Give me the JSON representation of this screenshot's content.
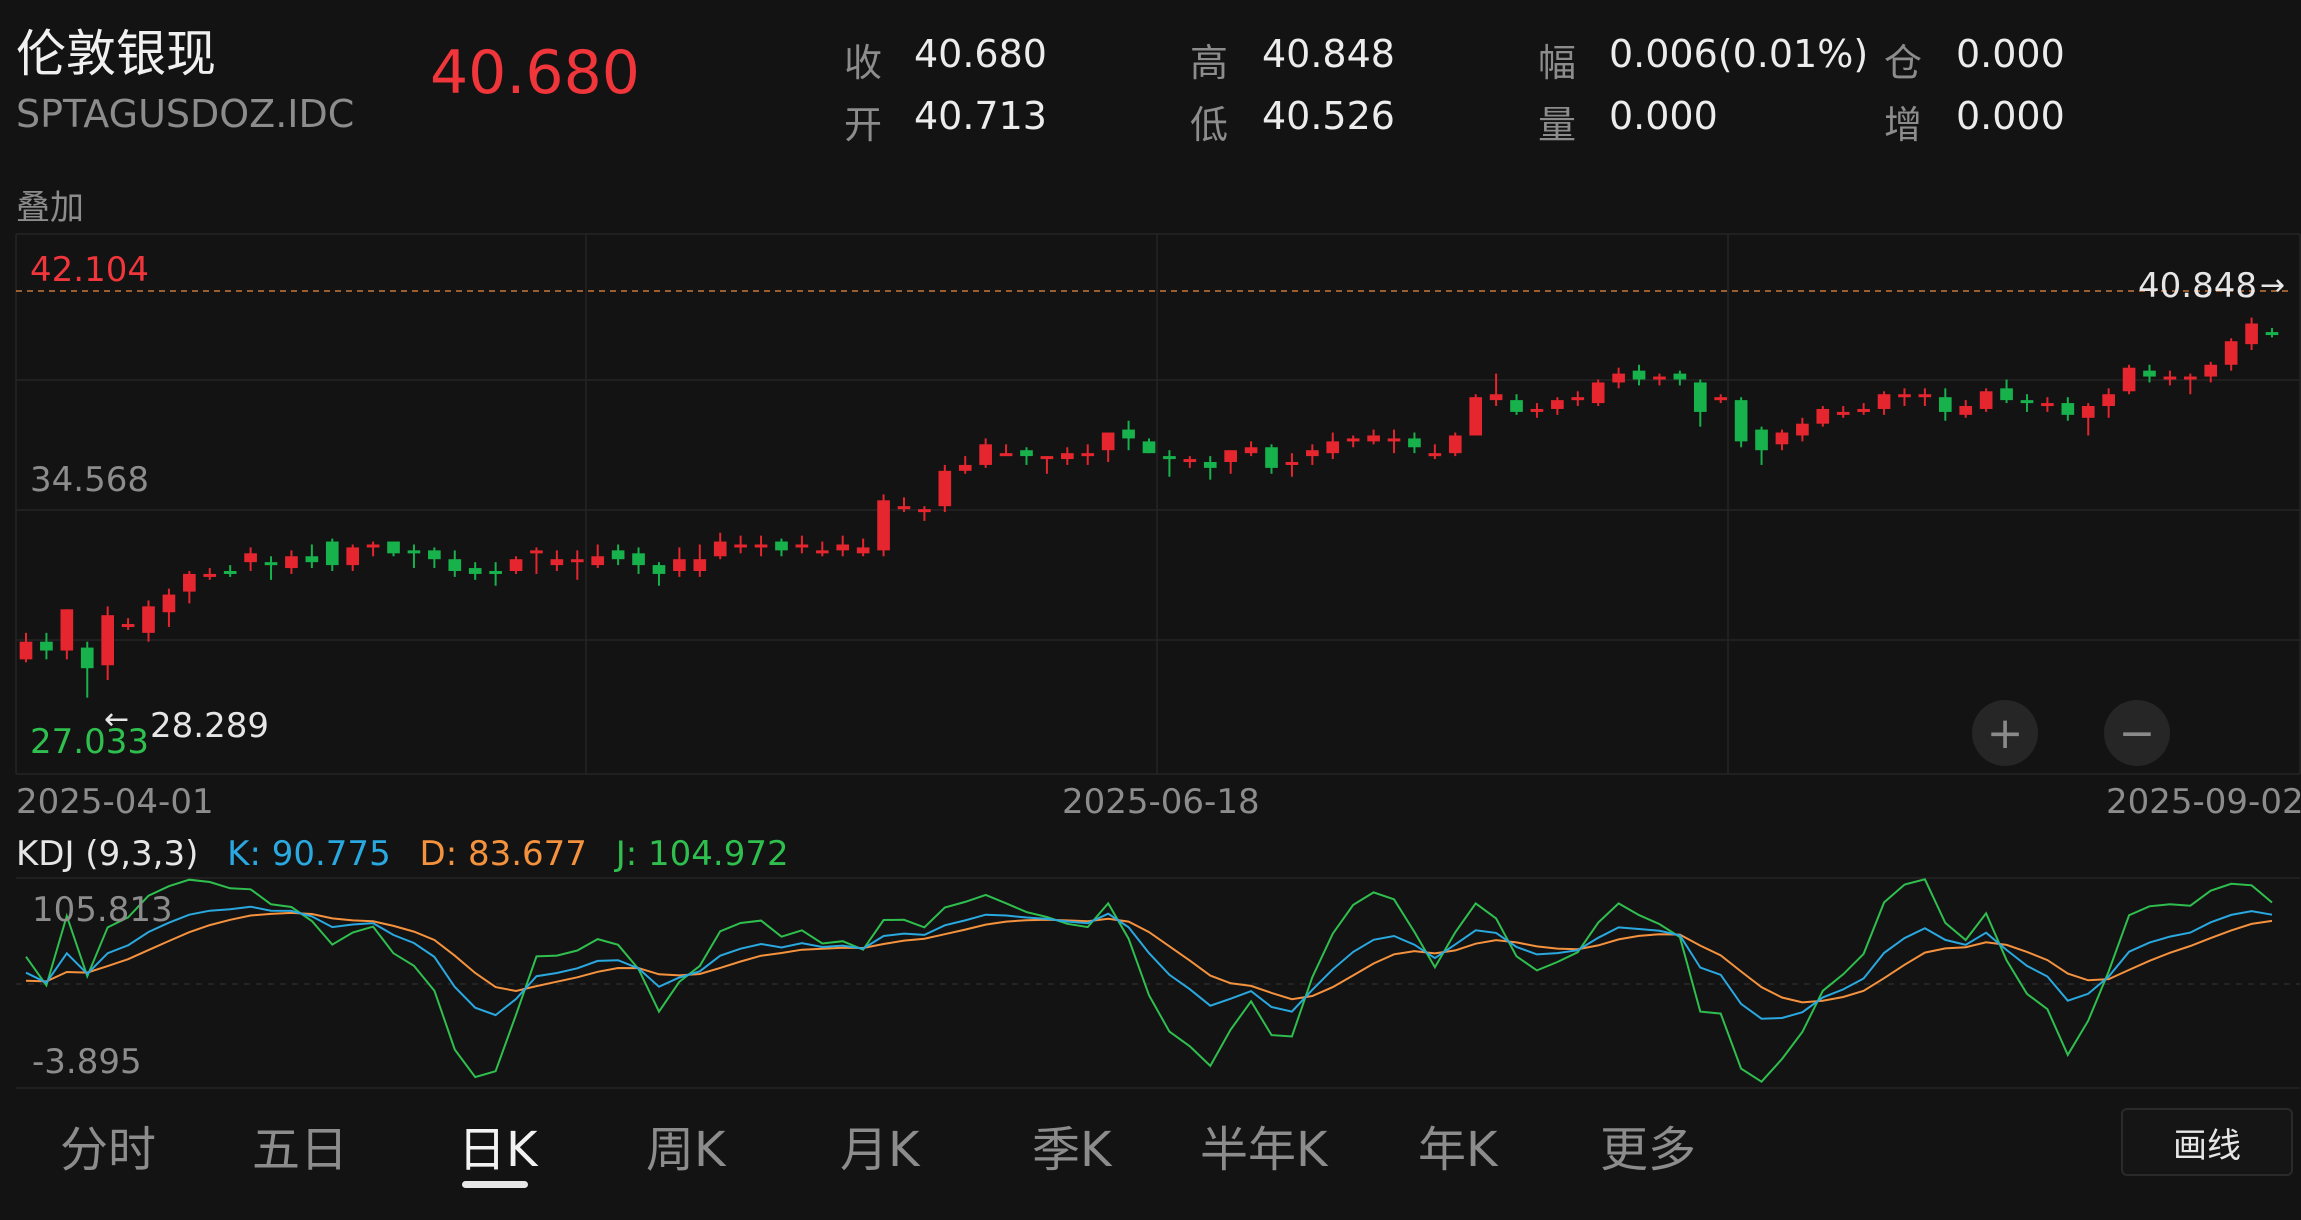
{
  "header": {
    "name": "伦敦银现",
    "code": "SPTAGUSDOZ.IDC",
    "last_price": "40.680",
    "stats": [
      {
        "label": "收",
        "value": "40.680"
      },
      {
        "label": "开",
        "value": "40.713"
      },
      {
        "label": "高",
        "value": "40.848"
      },
      {
        "label": "低",
        "value": "40.526"
      },
      {
        "label": "幅",
        "value": "0.006(0.01%)"
      },
      {
        "label": "量",
        "value": "0.000"
      },
      {
        "label": "仓",
        "value": "0.000"
      },
      {
        "label": "增",
        "value": "0.000"
      }
    ]
  },
  "overlay_label": "叠加",
  "colors": {
    "up": "#e5262e",
    "down": "#17b24c",
    "K": "#2aa8e0",
    "D": "#f5923e",
    "J": "#2fbf4e",
    "price": "#f0353b"
  },
  "price_chart": {
    "max_label": "42.104",
    "mid_label": "34.568",
    "min_label": "27.033",
    "current_marker": "40.848",
    "low_marker": "28.289",
    "dates": [
      "2025-04-01",
      "2025-06-18",
      "2025-09-02"
    ],
    "candles": [
      [
        29.6,
        30.2,
        30.5,
        29.5
      ],
      [
        30.2,
        29.9,
        30.5,
        29.6
      ],
      [
        29.9,
        31.3,
        31.3,
        29.6
      ],
      [
        30.0,
        29.3,
        30.2,
        28.3
      ],
      [
        29.4,
        31.1,
        31.4,
        28.9
      ],
      [
        30.7,
        30.8,
        31.0,
        30.6
      ],
      [
        30.5,
        31.4,
        31.6,
        30.2
      ],
      [
        31.2,
        31.8,
        32.0,
        30.7
      ],
      [
        31.9,
        32.5,
        32.6,
        31.5
      ],
      [
        32.5,
        32.5,
        32.7,
        32.3
      ],
      [
        32.6,
        32.5,
        32.8,
        32.4
      ],
      [
        32.9,
        33.2,
        33.4,
        32.6
      ],
      [
        32.9,
        32.8,
        33.1,
        32.3
      ],
      [
        32.7,
        33.1,
        33.3,
        32.5
      ],
      [
        33.1,
        32.9,
        33.5,
        32.7
      ],
      [
        33.6,
        32.8,
        33.7,
        32.6
      ],
      [
        32.8,
        33.4,
        33.5,
        32.6
      ],
      [
        33.4,
        33.5,
        33.6,
        33.1
      ],
      [
        33.6,
        33.2,
        33.6,
        33.1
      ],
      [
        33.3,
        33.2,
        33.5,
        32.7
      ],
      [
        33.3,
        33.0,
        33.4,
        32.7
      ],
      [
        33.0,
        32.6,
        33.3,
        32.4
      ],
      [
        32.7,
        32.5,
        32.9,
        32.3
      ],
      [
        32.6,
        32.5,
        32.9,
        32.1
      ],
      [
        32.6,
        33.0,
        33.1,
        32.5
      ],
      [
        33.2,
        33.3,
        33.4,
        32.5
      ],
      [
        32.8,
        33.0,
        33.3,
        32.6
      ],
      [
        32.9,
        33.0,
        33.3,
        32.3
      ],
      [
        32.8,
        33.1,
        33.5,
        32.7
      ],
      [
        33.3,
        33.0,
        33.5,
        32.8
      ],
      [
        33.2,
        32.8,
        33.4,
        32.5
      ],
      [
        32.8,
        32.5,
        32.9,
        32.1
      ],
      [
        32.6,
        33.0,
        33.4,
        32.4
      ],
      [
        32.6,
        33.0,
        33.5,
        32.4
      ],
      [
        33.1,
        33.6,
        33.9,
        33.0
      ],
      [
        33.4,
        33.5,
        33.8,
        33.2
      ],
      [
        33.4,
        33.5,
        33.8,
        33.1
      ],
      [
        33.6,
        33.3,
        33.7,
        33.1
      ],
      [
        33.4,
        33.5,
        33.8,
        33.2
      ],
      [
        33.3,
        33.3,
        33.6,
        33.1
      ],
      [
        33.3,
        33.5,
        33.8,
        33.1
      ],
      [
        33.2,
        33.4,
        33.7,
        33.1
      ],
      [
        33.3,
        35.0,
        35.2,
        33.1
      ],
      [
        34.8,
        34.8,
        35.1,
        34.6
      ],
      [
        34.7,
        34.7,
        34.8,
        34.3
      ],
      [
        34.8,
        36.0,
        36.2,
        34.6
      ],
      [
        36.0,
        36.2,
        36.5,
        35.9
      ],
      [
        36.2,
        36.9,
        37.1,
        36.1
      ],
      [
        36.6,
        36.6,
        36.9,
        36.5
      ],
      [
        36.7,
        36.5,
        36.8,
        36.2
      ],
      [
        36.5,
        36.5,
        36.5,
        35.9
      ],
      [
        36.4,
        36.6,
        36.8,
        36.2
      ],
      [
        36.5,
        36.6,
        36.9,
        36.2
      ],
      [
        36.7,
        37.3,
        37.3,
        36.3
      ],
      [
        37.4,
        37.1,
        37.7,
        36.7
      ],
      [
        37.0,
        36.6,
        37.1,
        36.6
      ],
      [
        36.5,
        36.4,
        36.7,
        35.8
      ],
      [
        36.3,
        36.4,
        36.5,
        36.1
      ],
      [
        36.3,
        36.1,
        36.5,
        35.7
      ],
      [
        36.3,
        36.7,
        36.7,
        35.9
      ],
      [
        36.6,
        36.8,
        37.0,
        36.5
      ],
      [
        36.8,
        36.1,
        36.9,
        35.9
      ],
      [
        36.3,
        36.3,
        36.6,
        35.8
      ],
      [
        36.5,
        36.7,
        36.9,
        36.2
      ],
      [
        36.6,
        37.0,
        37.3,
        36.4
      ],
      [
        37.1,
        37.1,
        37.2,
        36.8
      ],
      [
        37.0,
        37.2,
        37.4,
        36.9
      ],
      [
        37.1,
        37.1,
        37.4,
        36.6
      ],
      [
        37.1,
        36.8,
        37.3,
        36.6
      ],
      [
        36.6,
        36.6,
        36.9,
        36.4
      ],
      [
        36.6,
        37.2,
        37.3,
        36.5
      ],
      [
        37.2,
        38.5,
        38.6,
        37.2
      ],
      [
        38.4,
        38.6,
        39.3,
        38.2
      ],
      [
        38.4,
        38.0,
        38.6,
        37.9
      ],
      [
        38.0,
        38.1,
        38.3,
        37.8
      ],
      [
        38.1,
        38.4,
        38.5,
        37.9
      ],
      [
        38.4,
        38.5,
        38.7,
        38.2
      ],
      [
        38.3,
        39.0,
        39.1,
        38.2
      ],
      [
        39.0,
        39.3,
        39.5,
        38.8
      ],
      [
        39.4,
        39.1,
        39.6,
        38.9
      ],
      [
        39.2,
        39.2,
        39.3,
        38.9
      ],
      [
        39.3,
        39.1,
        39.4,
        38.9
      ],
      [
        39.0,
        38.0,
        39.1,
        37.5
      ],
      [
        38.5,
        38.5,
        38.6,
        38.3
      ],
      [
        38.4,
        37.0,
        38.5,
        36.8
      ],
      [
        37.4,
        36.7,
        37.5,
        36.2
      ],
      [
        36.9,
        37.3,
        37.4,
        36.7
      ],
      [
        37.2,
        37.6,
        37.8,
        37.0
      ],
      [
        37.6,
        38.1,
        38.2,
        37.5
      ],
      [
        38.0,
        38.0,
        38.2,
        37.8
      ],
      [
        38.0,
        38.1,
        38.3,
        37.9
      ],
      [
        38.1,
        38.6,
        38.7,
        37.9
      ],
      [
        38.5,
        38.6,
        38.8,
        38.2
      ],
      [
        38.6,
        38.6,
        38.8,
        38.2
      ],
      [
        38.5,
        38.0,
        38.8,
        37.7
      ],
      [
        37.9,
        38.2,
        38.4,
        37.8
      ],
      [
        38.1,
        38.7,
        38.8,
        38.0
      ],
      [
        38.8,
        38.4,
        39.1,
        38.3
      ],
      [
        38.4,
        38.3,
        38.6,
        38.0
      ],
      [
        38.2,
        38.3,
        38.5,
        38.0
      ],
      [
        38.3,
        37.9,
        38.5,
        37.7
      ],
      [
        37.8,
        38.2,
        38.3,
        37.2
      ],
      [
        38.2,
        38.6,
        38.8,
        37.8
      ],
      [
        38.7,
        39.5,
        39.6,
        38.6
      ],
      [
        39.4,
        39.2,
        39.6,
        39.0
      ],
      [
        39.1,
        39.2,
        39.4,
        38.9
      ],
      [
        39.1,
        39.2,
        39.3,
        38.6
      ],
      [
        39.2,
        39.6,
        39.7,
        39.0
      ],
      [
        39.6,
        40.4,
        40.5,
        39.4
      ],
      [
        40.3,
        41.0,
        41.2,
        40.1
      ],
      [
        40.71,
        40.68,
        40.85,
        40.53
      ]
    ]
  },
  "kdj": {
    "title": "KDJ (9,3,3)",
    "k_label": "K: 90.775",
    "d_label": "D: 83.677",
    "j_label": "J: 104.972",
    "max_label": "105.813",
    "min_label": "-3.895"
  },
  "tabs": [
    "分时",
    "五日",
    "日K",
    "周K",
    "月K",
    "季K",
    "半年K",
    "年K",
    "更多"
  ],
  "active_tab": "日K",
  "draw_button": "画线",
  "zoom_in": "+",
  "zoom_out": "−"
}
